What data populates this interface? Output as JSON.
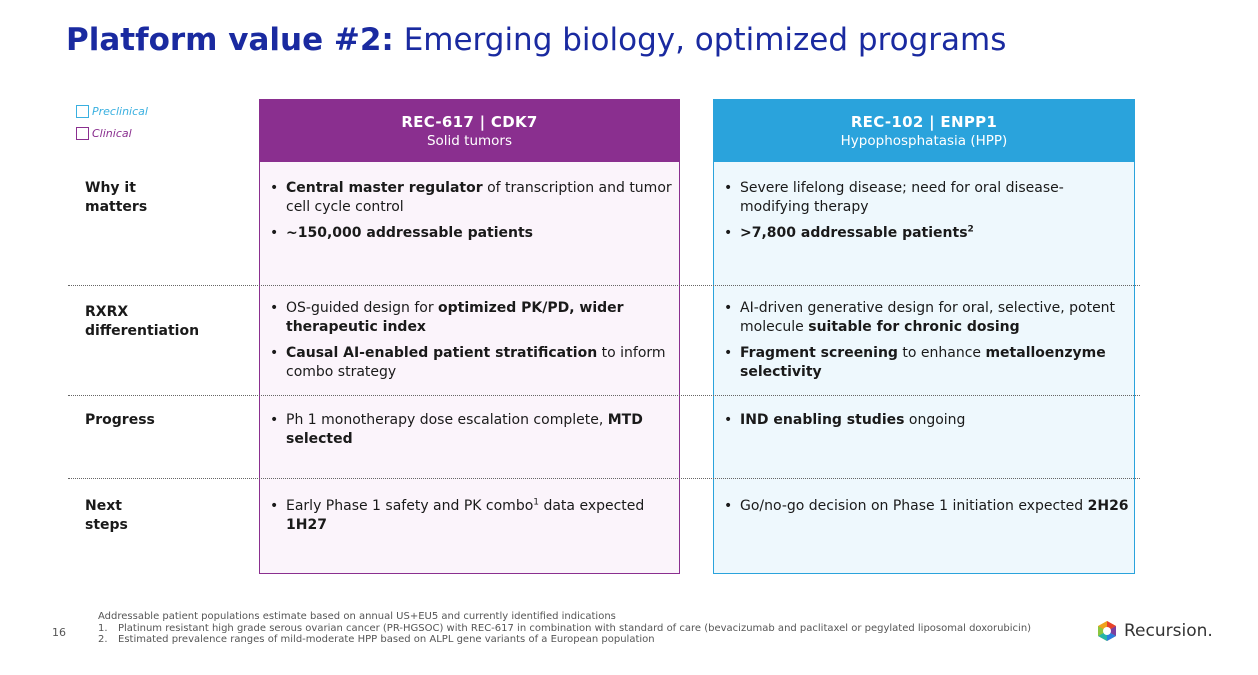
{
  "title": {
    "bold": "Platform value #2:",
    "rest": "Emerging biology, optimized programs"
  },
  "legend": {
    "preclinical": "Preclinical",
    "clinical": "Clinical"
  },
  "columns": [
    {
      "title": "REC-617 | CDK7",
      "subtitle": "Solid tumors"
    },
    {
      "title": "REC-102 | ENPP1",
      "subtitle": "Hypophosphatasia (HPP)"
    }
  ],
  "rows": {
    "why": {
      "label1": "Why it",
      "label2": "matters"
    },
    "rxrx": {
      "label1": "RXRX",
      "label2": "differentiation"
    },
    "progress": {
      "label1": "Progress"
    },
    "next": {
      "label1": "Next",
      "label2": "steps"
    }
  },
  "cells": {
    "why_1": {
      "b1_bold": "Central master regulator",
      "b1_rest": " of transcription and tumor cell cycle control",
      "b2_bold": "~150,000 addressable patients"
    },
    "why_2": {
      "b1": "Severe lifelong disease; need for oral disease-modifying therapy",
      "b2_bold": ">7,800 addressable patients",
      "b2_sup": "2"
    },
    "rxrx_1": {
      "b1_pre": "OS-guided design for ",
      "b1_bold": "optimized PK/PD, wider therapeutic index",
      "b2_bold": "Causal AI-enabled patient stratification",
      "b2_rest": " to inform combo strategy"
    },
    "rxrx_2": {
      "b1_pre": "AI-driven generative design for oral, selective, potent molecule ",
      "b1_bold": "suitable for chronic dosing",
      "b2_bold": "Fragment screening",
      "b2_mid": " to enhance ",
      "b2_bold2": "metalloenzyme selectivity"
    },
    "progress_1": {
      "b1_pre": "Ph 1 monotherapy dose escalation complete, ",
      "b1_bold": "MTD selected"
    },
    "progress_2": {
      "b1_bold": "IND enabling studies",
      "b1_rest": " ongoing"
    },
    "next_1": {
      "b1_pre": "Early Phase 1 safety and PK combo",
      "b1_sup": "1",
      "b1_mid": " data expected ",
      "b1_bold": "1H27"
    },
    "next_2": {
      "b1_pre": "Go/no-go decision on Phase 1 initiation expected ",
      "b1_bold": "2H26"
    }
  },
  "footer": {
    "page_number": "16",
    "intro": "Addressable patient populations estimate based on annual US+EU5 and currently identified indications",
    "notes": [
      {
        "num": "1.",
        "text": "Platinum resistant high grade serous ovarian cancer (PR-HGSOC) with REC-617 in combination with standard of care (bevacizumab and paclitaxel or pegylated liposomal doxorubicin)"
      },
      {
        "num": "2.",
        "text": "Estimated prevalence ranges of mild-moderate HPP based on ALPL gene variants of a European population"
      }
    ],
    "logo_text": "Recursion."
  },
  "colors": {
    "clinical": "#8a2f8f",
    "preclinical": "#2aa3dc",
    "title": "#1a2aa0"
  },
  "bullet_char": "•"
}
